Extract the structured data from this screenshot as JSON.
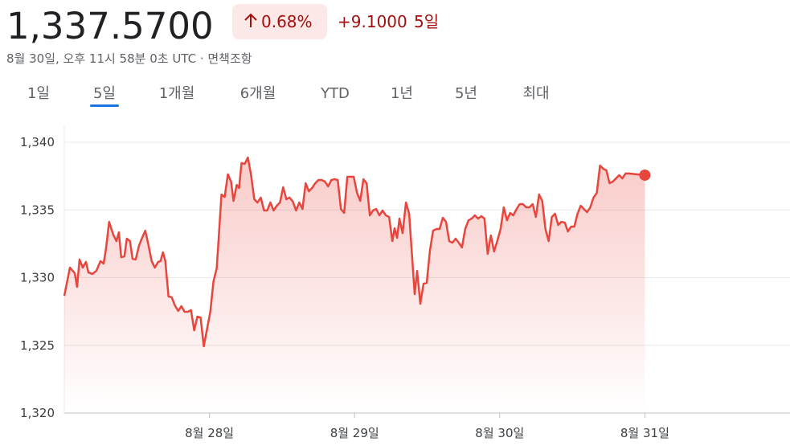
{
  "header": {
    "price": "1,337.5700",
    "change_percent": "0.68%",
    "change_abs": "+9.1000",
    "period": "5일",
    "timestamp": "8월 30일, 오후 11시 58분 0초 UTC · 면책조항"
  },
  "tabs": {
    "items": [
      "1일",
      "5일",
      "1개월",
      "6개월",
      "YTD",
      "1년",
      "5년",
      "최대"
    ],
    "active": 1
  },
  "chart_data": {
    "type": "line",
    "color": "#e8453c",
    "grid": true,
    "xlim": [
      27,
      32
    ],
    "xticks": [
      {
        "value": 28,
        "label": "8월 28일"
      },
      {
        "value": 29,
        "label": "8월 29일"
      },
      {
        "value": 30,
        "label": "8월 30일"
      },
      {
        "value": 31,
        "label": "8월 31일"
      }
    ],
    "ylim": [
      1320,
      1340
    ],
    "yticks": [
      {
        "value": 1320,
        "label": "1,320"
      },
      {
        "value": 1325,
        "label": "1,325"
      },
      {
        "value": 1330,
        "label": "1,330"
      },
      {
        "value": 1335,
        "label": "1,335"
      },
      {
        "value": 1340,
        "label": "1,340"
      }
    ],
    "x": [
      27.0,
      27.039,
      27.072,
      27.088,
      27.105,
      27.127,
      27.149,
      27.166,
      27.193,
      27.221,
      27.249,
      27.271,
      27.287,
      27.309,
      27.337,
      27.359,
      27.376,
      27.392,
      27.414,
      27.431,
      27.453,
      27.47,
      27.492,
      27.514,
      27.536,
      27.558,
      27.58,
      27.602,
      27.624,
      27.646,
      27.663,
      27.68,
      27.696,
      27.718,
      27.74,
      27.762,
      27.785,
      27.807,
      27.829,
      27.851,
      27.873,
      27.895,
      27.917,
      27.939,
      27.961,
      27.983,
      28.006,
      28.028,
      28.05,
      28.066,
      28.083,
      28.105,
      28.127,
      28.149,
      28.166,
      28.188,
      28.204,
      28.221,
      28.243,
      28.265,
      28.287,
      28.309,
      28.331,
      28.354,
      28.376,
      28.398,
      28.42,
      28.442,
      28.464,
      28.486,
      28.508,
      28.53,
      28.552,
      28.575,
      28.597,
      28.619,
      28.641,
      28.663,
      28.685,
      28.707,
      28.729,
      28.751,
      28.773,
      28.796,
      28.818,
      28.84,
      28.862,
      28.884,
      28.906,
      28.928,
      28.95,
      28.972,
      28.994,
      29.017,
      29.039,
      29.061,
      29.083,
      29.105,
      29.127,
      29.149,
      29.171,
      29.193,
      29.215,
      29.238,
      29.26,
      29.276,
      29.293,
      29.309,
      29.331,
      29.354,
      29.376,
      29.398,
      29.414,
      29.431,
      29.453,
      29.475,
      29.497,
      29.519,
      29.541,
      29.564,
      29.586,
      29.608,
      29.63,
      29.652,
      29.674,
      29.696,
      29.718,
      29.74,
      29.762,
      29.785,
      29.807,
      29.829,
      29.851,
      29.873,
      29.895,
      29.917,
      29.939,
      29.961,
      29.983,
      30.006,
      30.028,
      30.05,
      30.072,
      30.094,
      30.116,
      30.138,
      30.16,
      30.182,
      30.204,
      30.227,
      30.249,
      30.271,
      30.293,
      30.315,
      30.337,
      30.359,
      30.381,
      30.403,
      30.425,
      30.448,
      30.47,
      30.492,
      30.514,
      30.536,
      30.558,
      30.58,
      30.602,
      30.624,
      30.646,
      30.669,
      30.691,
      30.713,
      30.735,
      30.757,
      30.779,
      30.801,
      30.823,
      30.845,
      30.867,
      30.89,
      31.0
    ],
    "values": [
      1328.66,
      1330.74,
      1330.33,
      1329.32,
      1331.34,
      1330.74,
      1331.16,
      1330.39,
      1330.27,
      1330.5,
      1331.22,
      1331.04,
      1332.11,
      1334.12,
      1333.18,
      1332.7,
      1333.35,
      1331.51,
      1331.57,
      1332.88,
      1332.7,
      1331.39,
      1331.34,
      1332.34,
      1332.94,
      1333.47,
      1332.4,
      1331.22,
      1330.74,
      1331.16,
      1331.22,
      1331.87,
      1331.22,
      1328.61,
      1328.55,
      1327.95,
      1327.54,
      1327.89,
      1327.48,
      1327.48,
      1327.6,
      1326.11,
      1327.12,
      1327.06,
      1324.93,
      1326.17,
      1327.48,
      1329.73,
      1330.68,
      1333.29,
      1336.14,
      1335.96,
      1337.63,
      1337.09,
      1335.67,
      1336.85,
      1336.62,
      1338.46,
      1338.4,
      1338.87,
      1337.57,
      1335.79,
      1335.55,
      1335.91,
      1334.96,
      1334.96,
      1335.55,
      1334.96,
      1335.31,
      1335.55,
      1336.68,
      1335.79,
      1335.91,
      1335.61,
      1334.96,
      1335.55,
      1335.07,
      1336.97,
      1336.38,
      1336.62,
      1336.97,
      1337.21,
      1337.21,
      1337.09,
      1336.74,
      1337.21,
      1337.27,
      1337.21,
      1335.07,
      1334.78,
      1337.45,
      1337.45,
      1337.45,
      1336.26,
      1335.67,
      1337.27,
      1336.97,
      1334.6,
      1334.96,
      1335.07,
      1334.6,
      1334.96,
      1334.6,
      1334.48,
      1332.7,
      1333.65,
      1332.94,
      1334.36,
      1333.29,
      1335.55,
      1334.72,
      1331.28,
      1328.78,
      1330.5,
      1328.07,
      1329.55,
      1329.61,
      1331.99,
      1333.47,
      1333.59,
      1333.59,
      1334.42,
      1334.12,
      1332.7,
      1332.58,
      1332.88,
      1332.58,
      1332.23,
      1333.59,
      1334.24,
      1334.36,
      1334.6,
      1334.36,
      1334.54,
      1334.36,
      1331.75,
      1333.12,
      1331.93,
      1332.7,
      1333.59,
      1335.19,
      1334.24,
      1334.78,
      1334.6,
      1335.07,
      1335.43,
      1335.43,
      1335.19,
      1335.19,
      1335.43,
      1334.48,
      1336.14,
      1335.67,
      1333.59,
      1332.7,
      1334.48,
      1334.72,
      1333.89,
      1334.12,
      1334.07,
      1333.41,
      1333.77,
      1333.77,
      1334.72,
      1335.31,
      1335.07,
      1334.84,
      1335.19,
      1335.91,
      1336.26,
      1338.28,
      1338.04,
      1337.92,
      1336.97,
      1337.09,
      1337.33,
      1337.57,
      1337.33,
      1337.69,
      1337.69,
      1337.57
    ]
  }
}
